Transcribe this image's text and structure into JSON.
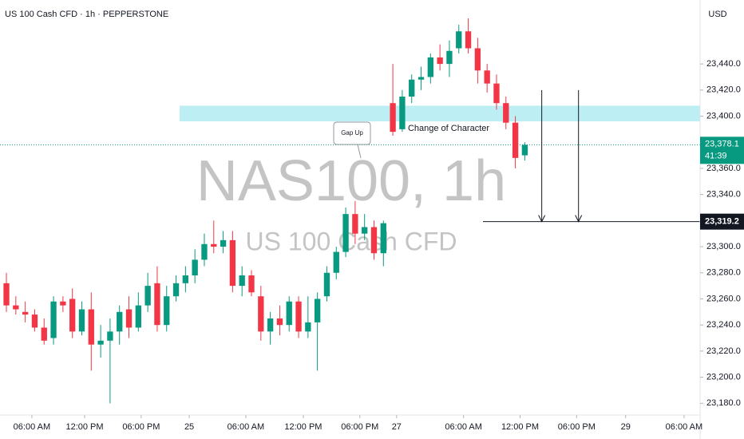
{
  "chart_data": {
    "type": "candlestick",
    "title": "US 100 Cash CFD · 1h · PEPPERSTONE",
    "watermark": "NAS100, 1h",
    "watermark_subtitle": "US 100 Cash CFD",
    "currency": "USD",
    "up_color": "#089981",
    "down_color": "#f23645",
    "x": [
      0,
      1,
      2,
      3,
      4,
      5,
      6,
      7,
      8,
      9,
      10,
      11,
      12,
      13,
      14,
      15,
      16,
      17,
      18,
      19,
      20,
      21,
      22,
      23,
      24,
      25,
      26,
      27,
      28,
      29,
      30,
      31,
      32,
      33,
      34,
      35,
      36,
      37,
      38,
      39,
      40,
      41,
      42,
      43,
      44,
      45,
      46,
      47,
      48,
      49,
      50,
      51,
      52,
      53,
      54,
      55
    ],
    "open": [
      23272,
      23255,
      23250,
      23248,
      23238,
      23230,
      23258,
      23260,
      23235,
      23252,
      23225,
      23228,
      23235,
      23252,
      23238,
      23255,
      23272,
      23240,
      23262,
      23272,
      23278,
      23290,
      23302,
      23300,
      23305,
      23270,
      23278,
      23262,
      23235,
      23245,
      23240,
      23258,
      23235,
      23242,
      23262,
      23280,
      23296,
      23325,
      23310,
      23315,
      23295,
      23410,
      23390,
      23415,
      23428,
      23430,
      23445,
      23440,
      23452,
      23465,
      23452,
      23435,
      23425,
      23410,
      23395,
      23370
    ],
    "high": [
      23280,
      23262,
      23258,
      23252,
      23245,
      23262,
      23262,
      23268,
      23258,
      23265,
      23240,
      23245,
      23255,
      23262,
      23265,
      23280,
      23285,
      23270,
      23278,
      23285,
      23298,
      23310,
      23320,
      23312,
      23312,
      23285,
      23282,
      23270,
      23250,
      23255,
      23262,
      23262,
      23262,
      23265,
      23285,
      23300,
      23330,
      23335,
      23325,
      23320,
      23320,
      23440,
      23420,
      23432,
      23438,
      23448,
      23455,
      23458,
      23470,
      23475,
      23460,
      23440,
      23432,
      23415,
      23400,
      23380
    ],
    "low": [
      23250,
      23248,
      23242,
      23235,
      23225,
      23225,
      23250,
      23230,
      23232,
      23205,
      23215,
      23180,
      23225,
      23230,
      23235,
      23250,
      23235,
      23235,
      23258,
      23265,
      23272,
      23285,
      23295,
      23295,
      23265,
      23262,
      23262,
      23228,
      23225,
      23232,
      23235,
      23230,
      23230,
      23205,
      23258,
      23275,
      23292,
      23302,
      23305,
      23290,
      23285,
      23385,
      23388,
      23410,
      23420,
      23425,
      23435,
      23430,
      23448,
      23448,
      23425,
      23418,
      23405,
      23390,
      23360,
      23366
    ],
    "close": [
      23255,
      23252,
      23248,
      23238,
      23228,
      23258,
      23255,
      23235,
      23252,
      23225,
      23228,
      23235,
      23250,
      23238,
      23255,
      23270,
      23240,
      23262,
      23272,
      23278,
      23290,
      23302,
      23300,
      23305,
      23270,
      23278,
      23265,
      23235,
      23245,
      23240,
      23258,
      23235,
      23242,
      23260,
      23280,
      23296,
      23325,
      23310,
      23315,
      23295,
      23318,
      23388,
      23415,
      23428,
      23430,
      23445,
      23440,
      23450,
      23465,
      23452,
      23435,
      23425,
      23410,
      23395,
      23368,
      23378.1
    ],
    "xlim": [
      -0.68,
      73.6
    ],
    "xticks": [
      {
        "value": 2.7,
        "label": "06:00 AM"
      },
      {
        "value": 8.3,
        "label": "12:00 PM"
      },
      {
        "value": 14.3,
        "label": "06:00 PM"
      },
      {
        "value": 19.4,
        "label": "25"
      },
      {
        "value": 25.4,
        "label": "06:00 AM"
      },
      {
        "value": 31.5,
        "label": "12:00 PM"
      },
      {
        "value": 37.5,
        "label": "06:00 PM"
      },
      {
        "value": 41.4,
        "label": "27"
      },
      {
        "value": 48.5,
        "label": "06:00 AM"
      },
      {
        "value": 54.5,
        "label": "12:00 PM"
      },
      {
        "value": 60.5,
        "label": "06:00 PM"
      },
      {
        "value": 65.7,
        "label": "29"
      },
      {
        "value": 71.9,
        "label": "06:00 AM"
      }
    ],
    "ylim": [
      23171,
      23489
    ],
    "yticks": [
      {
        "value": 23440,
        "label": "23,440.0"
      },
      {
        "value": 23420,
        "label": "23,420.0"
      },
      {
        "value": 23400,
        "label": "23,400.0"
      },
      {
        "value": 23360,
        "label": "23,360.0"
      },
      {
        "value": 23340,
        "label": "23,340.0"
      },
      {
        "value": 23300,
        "label": "23,300.0"
      },
      {
        "value": 23280,
        "label": "23,280.0"
      },
      {
        "value": 23260,
        "label": "23,260.0"
      },
      {
        "value": 23240,
        "label": "23,240.0"
      },
      {
        "value": 23220,
        "label": "23,220.0"
      },
      {
        "value": 23200,
        "label": "23,200.0"
      },
      {
        "value": 23180,
        "label": "23,180.0"
      }
    ],
    "zone": [
      23396,
      23408
    ],
    "last_price": {
      "value": 23378.1,
      "label": "23,378.1"
    },
    "countdown": "41:39",
    "target": {
      "value": 23319.2,
      "label": "23,319.2"
    },
    "arrows": [
      {
        "x": 56.8,
        "from": 23420
      },
      {
        "x": 60.7,
        "from": 23420
      }
    ],
    "annotations": {
      "choch": "Change of Character",
      "gap": "Gap Up"
    }
  }
}
